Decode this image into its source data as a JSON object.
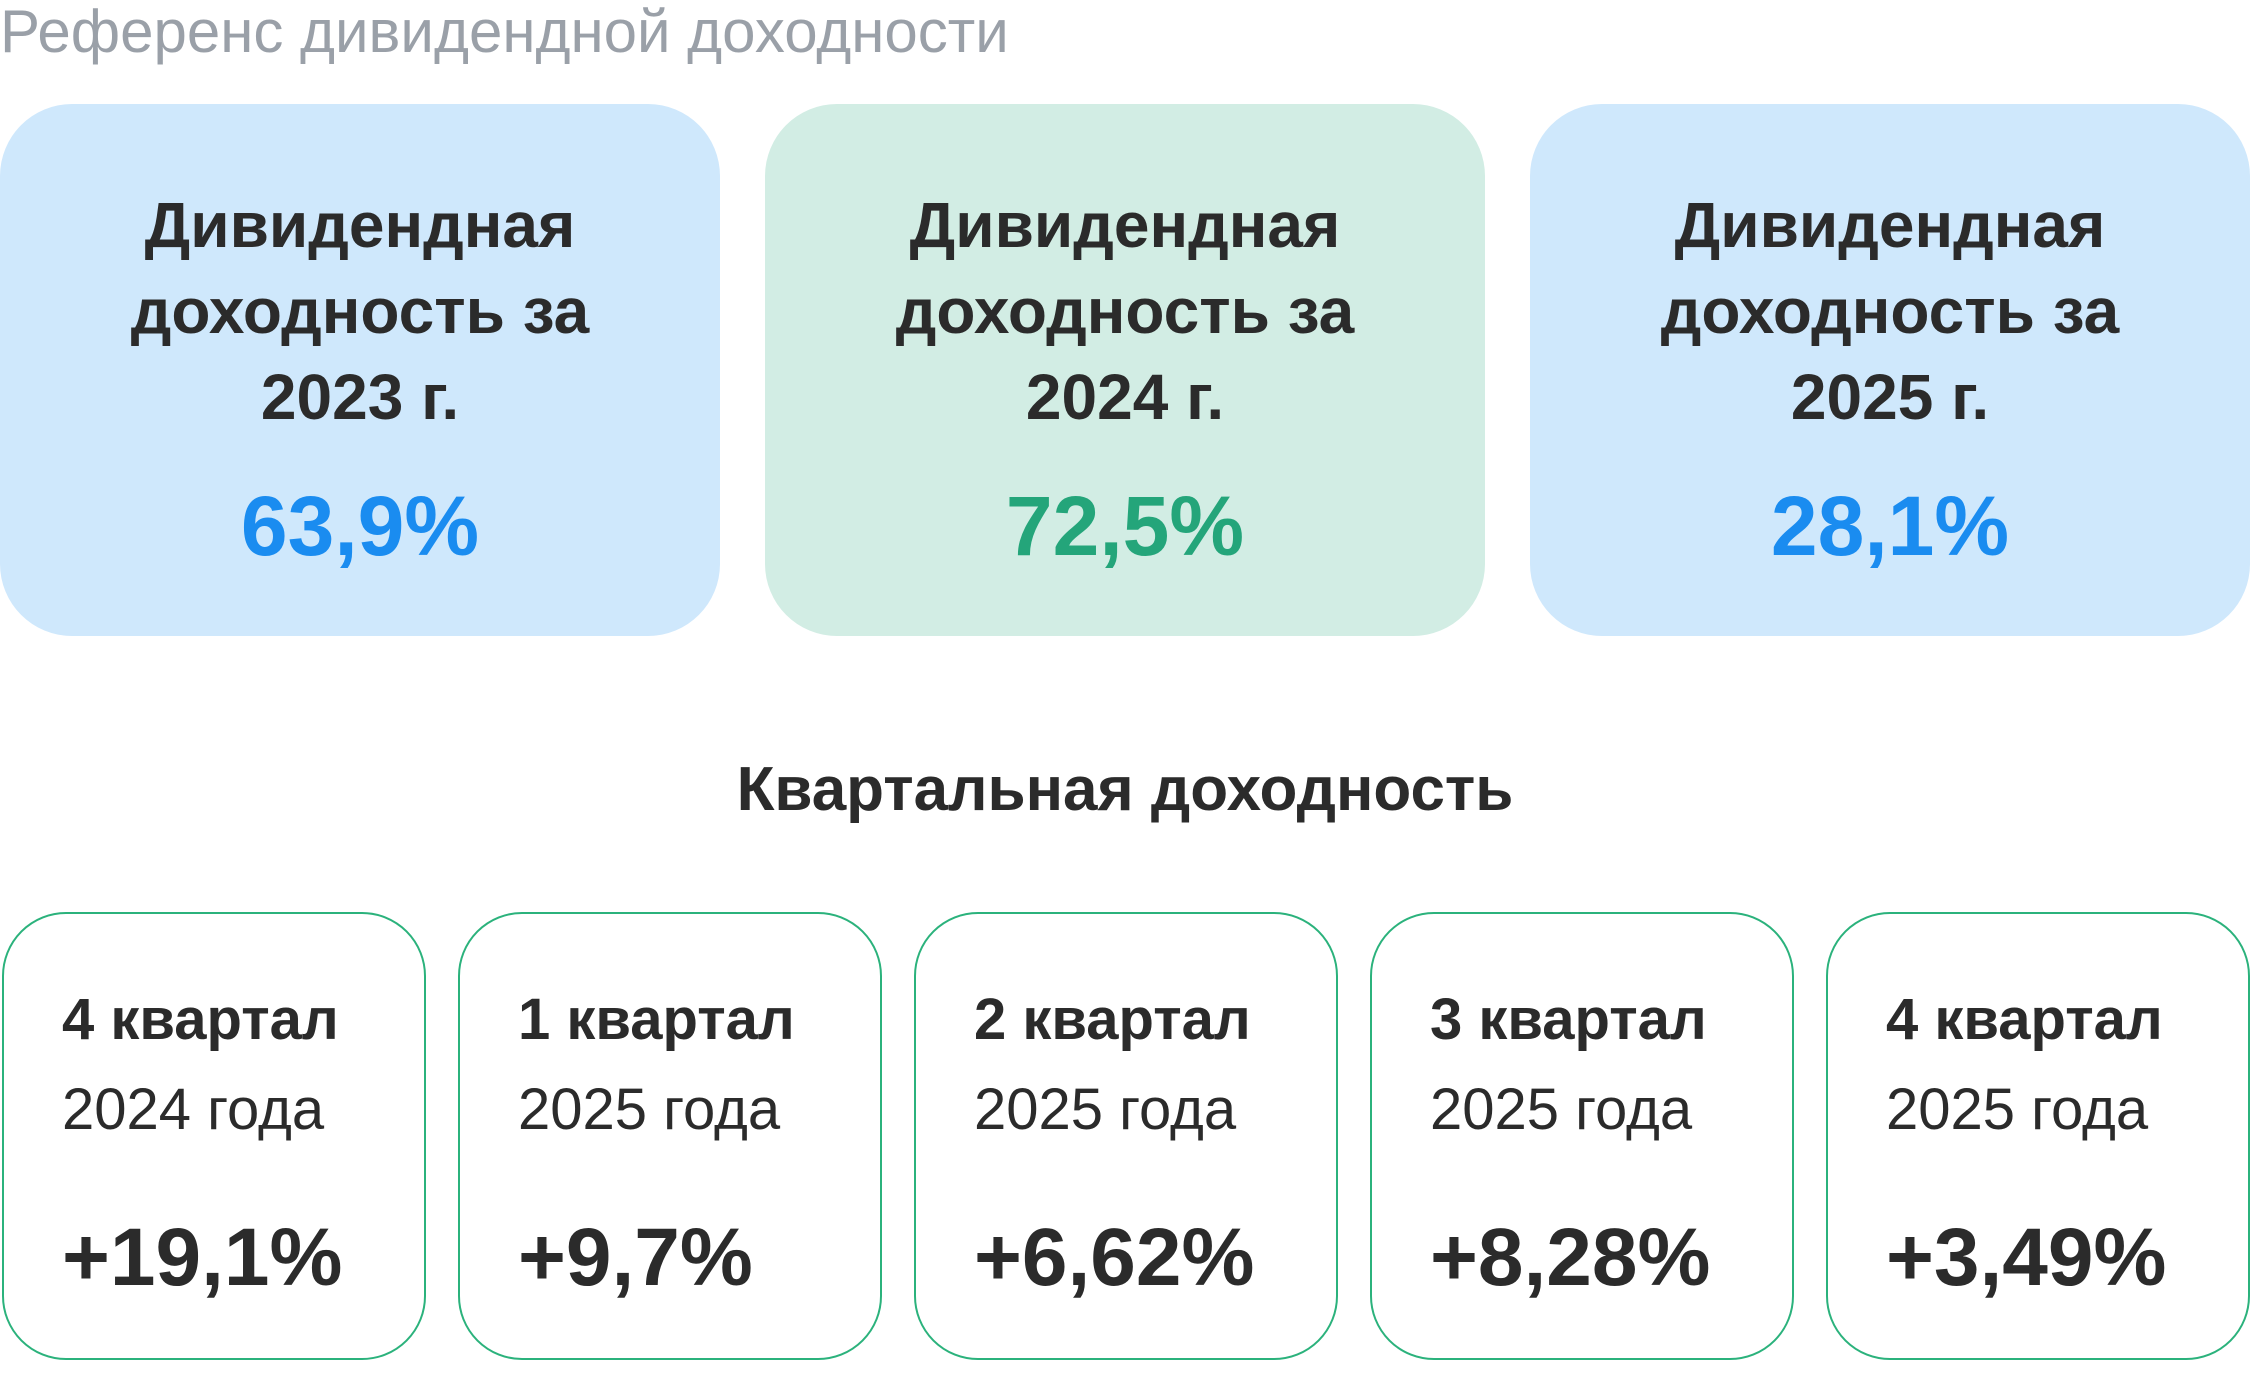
{
  "page": {
    "title": "Референс дивидендной доходности"
  },
  "annual": [
    {
      "label": "Дивидендная доходность за 2023 г.",
      "value": "63,9%",
      "bg_color": "#cfe8fc",
      "value_color": "#1a8cf0"
    },
    {
      "label": "Дивидендная доходность за 2024 г.",
      "value": "72,5%",
      "bg_color": "#d2ede4",
      "value_color": "#24a57a"
    },
    {
      "label": "Дивидендная доходность за 2025 г.",
      "value": "28,1%",
      "bg_color": "#cfe8fc",
      "value_color": "#1a8cf0"
    }
  ],
  "quarterly": {
    "title": "Квартальная доходность",
    "border_color": "#2bb27c",
    "items": [
      {
        "quarter": "4 квартал",
        "year": "2024 года",
        "value": "+19,1%"
      },
      {
        "quarter": "1 квартал",
        "year": "2025 года",
        "value": "+9,7%"
      },
      {
        "quarter": "2 квартал",
        "year": "2025 года",
        "value": "+6,62%"
      },
      {
        "quarter": "3 квартал",
        "year": "2025 года",
        "value": "+8,28%"
      },
      {
        "quarter": "4 квартал",
        "year": "2025 года",
        "value": "+3,49%"
      }
    ]
  }
}
